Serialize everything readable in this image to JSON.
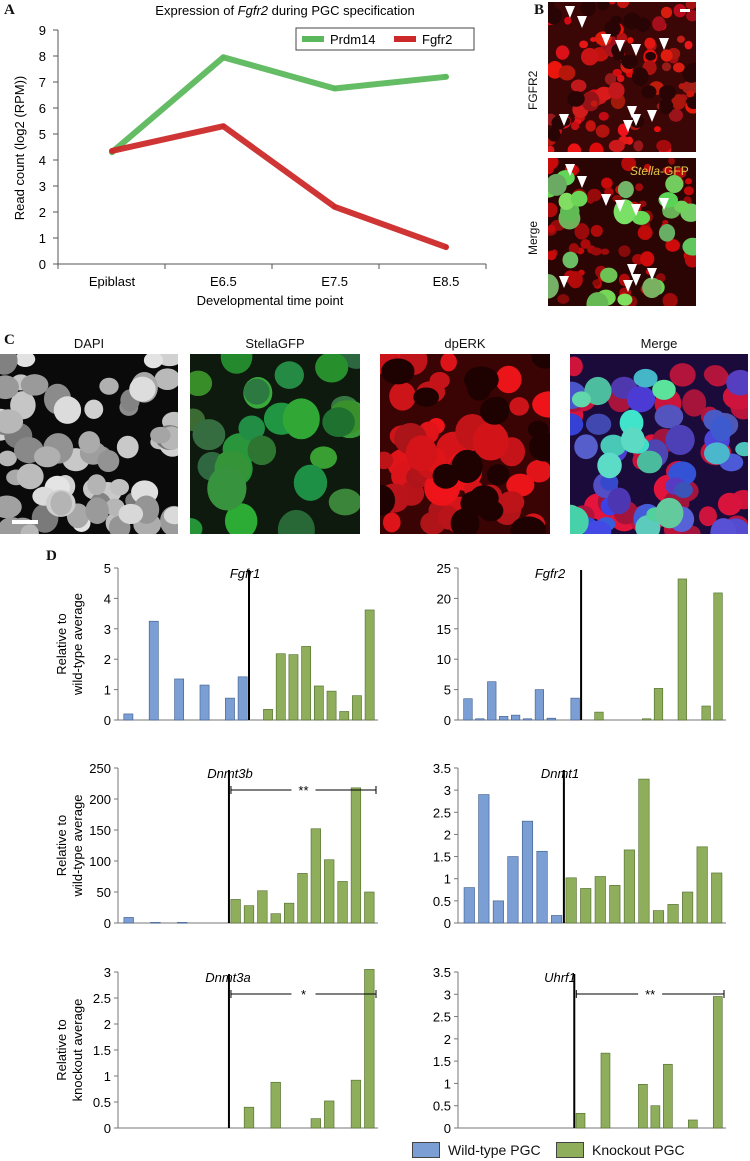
{
  "panels": {
    "A": "A",
    "B": "B",
    "C": "C",
    "D": "D"
  },
  "chart_data": [
    {
      "id": "A",
      "type": "line",
      "title_prefix": "Expression of ",
      "title_gene": "Fgfr2",
      "title_suffix": " during PGC specification",
      "xlabel": "Developmental time point",
      "ylabel": "Read count (log2 (RPM))",
      "categories": [
        "Epiblast",
        "E6.5",
        "E7.5",
        "E8.5"
      ],
      "ylim": [
        0,
        9
      ],
      "yticks": [
        0,
        1,
        2,
        3,
        4,
        5,
        6,
        7,
        8,
        9
      ],
      "legend_position": "top-right",
      "series": [
        {
          "name": "Prdm14",
          "color": "#5cb85c",
          "values": [
            4.3,
            7.95,
            6.75,
            7.2
          ]
        },
        {
          "name": "Fgfr2",
          "color": "#cc2a2a",
          "values": [
            4.35,
            5.3,
            2.2,
            0.65
          ]
        }
      ]
    },
    {
      "id": "D-Fgfr1",
      "type": "bar",
      "gene": "Fgfr1",
      "ylim": [
        0,
        5
      ],
      "yticks": [
        0,
        1,
        2,
        3,
        4,
        5
      ],
      "ylabel": [
        "Relative to",
        "wild-type average"
      ],
      "wild_type": [
        0.2,
        0,
        3.25,
        0,
        1.35,
        0,
        1.15,
        0,
        0.72,
        1.42
      ],
      "knockout": [
        0,
        0.35,
        2.18,
        2.15,
        2.42,
        1.12,
        0.95,
        0.28,
        0.8,
        3.62
      ],
      "significance": ""
    },
    {
      "id": "D-Fgfr2",
      "type": "bar",
      "gene": "Fgfr2",
      "ylim": [
        0,
        25
      ],
      "yticks": [
        0,
        5,
        10,
        15,
        20,
        25
      ],
      "ylabel": [],
      "wild_type": [
        3.5,
        0.2,
        6.3,
        0.6,
        0.8,
        0.2,
        5.0,
        0.3,
        0,
        3.6
      ],
      "knockout": [
        0,
        1.3,
        0,
        0,
        0,
        0.2,
        5.2,
        0,
        23.2,
        0,
        2.3,
        20.9
      ],
      "significance": ""
    },
    {
      "id": "D-Dnmt3b",
      "type": "bar",
      "gene": "Dnmt3b",
      "ylim": [
        0,
        250
      ],
      "yticks": [
        0,
        50,
        100,
        150,
        200,
        250
      ],
      "ylabel": [
        "Relative to",
        "wild-type average"
      ],
      "wild_type": [
        9,
        0,
        1,
        0,
        1,
        0,
        0,
        0
      ],
      "knockout": [
        38,
        28,
        52,
        15,
        32,
        80,
        152,
        102,
        67,
        218,
        50
      ],
      "significance": "**"
    },
    {
      "id": "D-Dnmt1",
      "type": "bar",
      "gene": "Dnmt1",
      "ylim": [
        0,
        3.5
      ],
      "yticks": [
        "0",
        "0.5",
        "1",
        "1.5",
        "2",
        "2.5",
        "3",
        "3.5"
      ],
      "ylabel": [],
      "wild_type": [
        0.8,
        2.9,
        0.5,
        1.5,
        2.3,
        1.62,
        0.17
      ],
      "knockout": [
        1.02,
        0.78,
        1.05,
        0.85,
        1.65,
        3.25,
        0.28,
        0.42,
        0.7,
        1.72,
        1.13
      ],
      "significance": ""
    },
    {
      "id": "D-Dnmt3a",
      "type": "bar",
      "gene": "Dnmt3a",
      "ylim": [
        0,
        3
      ],
      "yticks": [
        "0",
        "0.5",
        "1",
        "1.5",
        "2",
        "2.5",
        "3"
      ],
      "ylabel": [
        "Relative to",
        "knockout average"
      ],
      "wild_type": [
        0,
        0,
        0,
        0,
        0,
        0,
        0,
        0
      ],
      "knockout": [
        0,
        0.4,
        0,
        0.88,
        0,
        0,
        0.18,
        0.52,
        0,
        0.92,
        3.05
      ],
      "significance": "*"
    },
    {
      "id": "D-Uhrf1",
      "type": "bar",
      "gene": "Uhrf1",
      "ylim": [
        0,
        3.5
      ],
      "yticks": [
        "0",
        "0.5",
        "1",
        "1.5",
        "2",
        "2.5",
        "3",
        "3.5"
      ],
      "ylabel": [],
      "wild_type": [
        0,
        0,
        0,
        0,
        0,
        0,
        0,
        0,
        0
      ],
      "knockout": [
        0.33,
        0,
        1.68,
        0,
        0,
        0.98,
        0.5,
        1.43,
        0,
        0.18,
        0,
        2.95
      ],
      "significance": "**"
    }
  ],
  "panelB": {
    "label_top": "FGFR2",
    "label_bottom": "Merge",
    "gfp_label_italic": "Stella",
    "gfp_label_rest": "-GFP"
  },
  "panelC": {
    "labels": [
      "DAPI",
      "StellaGFP",
      "dpERK",
      "Merge"
    ]
  },
  "legend": {
    "wild_type": "Wild-type PGC",
    "knockout": "Knockout PGC",
    "wild_type_color": "#7b9fd4",
    "knockout_color": "#8fae5c"
  }
}
